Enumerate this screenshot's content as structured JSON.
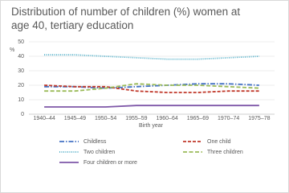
{
  "chart_data": {
    "type": "line",
    "title": "Distribution of number of children (%) women at age 40, tertiary education",
    "y_label": "%",
    "x_label": "Birth year",
    "categories": [
      "1940–44",
      "1945–49",
      "1950–54",
      "1955–59",
      "1960–64",
      "1965–69",
      "1970–74",
      "1975–78"
    ],
    "series": [
      {
        "name": "Childless",
        "color": "#4472c4",
        "dash": "6 2 1.5 2",
        "values": [
          19,
          19,
          18,
          19,
          20,
          21,
          21,
          20
        ]
      },
      {
        "name": "One child",
        "color": "#c0392b",
        "dash": "4 2",
        "values": [
          20,
          19,
          19,
          16,
          15,
          15,
          16,
          16
        ]
      },
      {
        "name": "Two children",
        "color": "#4bacc6",
        "dash": "1 1.5",
        "values": [
          41,
          41,
          40,
          39,
          38,
          38,
          39,
          40
        ]
      },
      {
        "name": "Three children",
        "color": "#9bbb59",
        "dash": "5 2.5",
        "values": [
          16,
          16,
          18,
          21,
          20,
          20,
          19,
          18
        ]
      },
      {
        "name": "Four children or more",
        "color": "#7e57a8",
        "dash": "",
        "values": [
          5,
          5,
          5,
          6,
          6,
          6,
          6,
          6
        ]
      }
    ],
    "ylim": [
      0,
      50
    ],
    "yticks": [
      0,
      10,
      20,
      30,
      40,
      50
    ],
    "grid": true
  }
}
